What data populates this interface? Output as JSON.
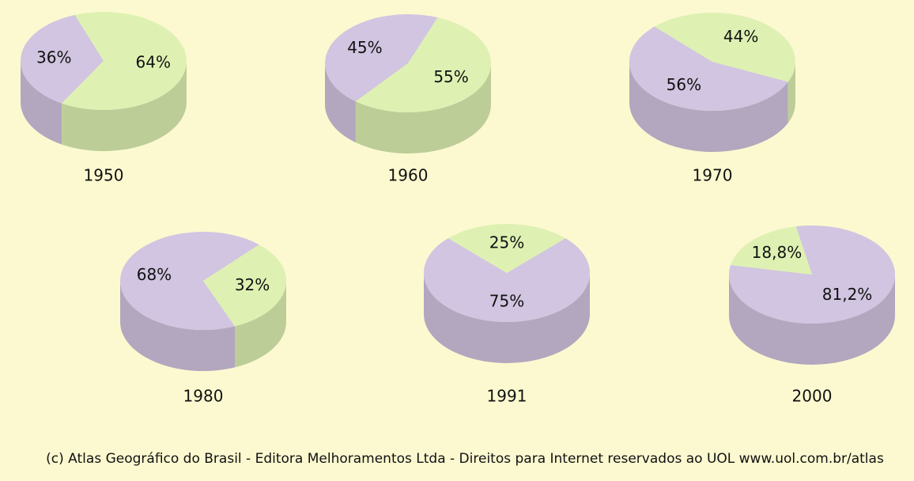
{
  "chart_data": [
    {
      "type": "pie",
      "title": "1950",
      "values": [
        36,
        64
      ],
      "value_labels": [
        "36%",
        "64%"
      ],
      "colors": [
        "#d1c5e1",
        "#def1b3"
      ]
    },
    {
      "type": "pie",
      "title": "1960",
      "values": [
        45,
        55
      ],
      "value_labels": [
        "45%",
        "55%"
      ],
      "colors": [
        "#d1c5e1",
        "#def1b3"
      ]
    },
    {
      "type": "pie",
      "title": "1970",
      "values": [
        56,
        44
      ],
      "value_labels": [
        "56%",
        "44%"
      ],
      "colors": [
        "#d1c5e1",
        "#def1b3"
      ]
    },
    {
      "type": "pie",
      "title": "1980",
      "values": [
        68,
        32
      ],
      "value_labels": [
        "68%",
        "32%"
      ],
      "colors": [
        "#d1c5e1",
        "#def1b3"
      ]
    },
    {
      "type": "pie",
      "title": "1991",
      "values": [
        75,
        25
      ],
      "value_labels": [
        "75%",
        "25%"
      ],
      "colors": [
        "#d1c5e1",
        "#def1b3"
      ]
    },
    {
      "type": "pie",
      "title": "2000",
      "values": [
        81.2,
        18.8
      ],
      "value_labels": [
        "81,2%",
        "18,8%"
      ],
      "colors": [
        "#d1c5e1",
        "#def1b3"
      ]
    }
  ],
  "source": "(c) Atlas Geográfico do Brasil - Editora Melhoramentos Ltda - Direitos para Internet reservados ao UOL www.uol.com.br/atlas"
}
